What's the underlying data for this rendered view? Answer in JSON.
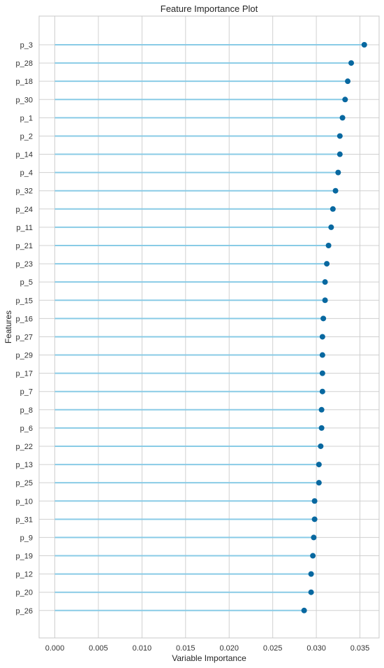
{
  "chart_data": {
    "type": "lollipop",
    "title": "Feature Importance Plot",
    "xlabel": "Variable Importance",
    "ylabel": "Features",
    "xlim": [
      -0.0018,
      0.0372
    ],
    "xticks": [
      0.0,
      0.005,
      0.01,
      0.015,
      0.02,
      0.025,
      0.03,
      0.035
    ],
    "xtick_labels": [
      "0.000",
      "0.005",
      "0.010",
      "0.015",
      "0.020",
      "0.025",
      "0.030",
      "0.035"
    ],
    "grid": true,
    "categories": [
      "p_3",
      "p_28",
      "p_18",
      "p_30",
      "p_1",
      "p_2",
      "p_14",
      "p_4",
      "p_32",
      "p_24",
      "p_11",
      "p_21",
      "p_23",
      "p_5",
      "p_15",
      "p_16",
      "p_27",
      "p_29",
      "p_17",
      "p_7",
      "p_8",
      "p_6",
      "p_22",
      "p_13",
      "p_25",
      "p_10",
      "p_31",
      "p_9",
      "p_19",
      "p_12",
      "p_20",
      "p_26"
    ],
    "values": [
      0.0355,
      0.034,
      0.0336,
      0.0333,
      0.033,
      0.0327,
      0.0327,
      0.0325,
      0.0322,
      0.0319,
      0.0317,
      0.0314,
      0.0312,
      0.031,
      0.031,
      0.0308,
      0.0307,
      0.0307,
      0.0307,
      0.0307,
      0.0306,
      0.0306,
      0.0305,
      0.0303,
      0.0303,
      0.0298,
      0.0298,
      0.0297,
      0.0296,
      0.0294,
      0.0294,
      0.0286
    ],
    "colors": {
      "stem": "#89CBE6",
      "marker": "#0868A0",
      "grid": "#D0D0D0",
      "axes_border": "#C8C8C8"
    }
  }
}
